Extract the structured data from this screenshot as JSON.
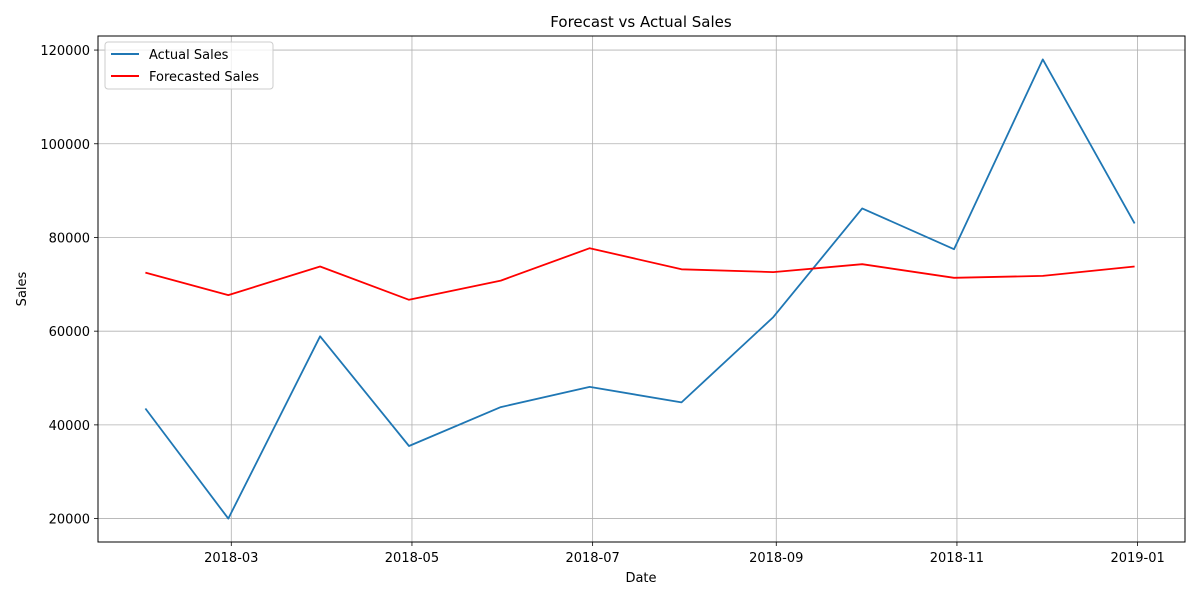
{
  "chart_data": {
    "type": "line",
    "title": "Forecast vs Actual Sales",
    "xlabel": "Date",
    "ylabel": "Sales",
    "x": [
      "2018-01-31",
      "2018-02-28",
      "2018-03-31",
      "2018-04-30",
      "2018-05-31",
      "2018-06-30",
      "2018-07-31",
      "2018-08-31",
      "2018-09-30",
      "2018-10-31",
      "2018-11-30",
      "2018-12-31"
    ],
    "x_ticks": [
      "2018-03",
      "2018-05",
      "2018-07",
      "2018-09",
      "2018-11",
      "2019-01"
    ],
    "xlim": [
      "2018-01-15",
      "2019-01-17"
    ],
    "y_ticks": [
      20000,
      40000,
      60000,
      80000,
      100000,
      120000
    ],
    "ylim": [
      15000,
      123000
    ],
    "grid": true,
    "legend_position": "top-left",
    "series": [
      {
        "name": "Actual Sales",
        "color": "#1f77b4",
        "values": [
          43500,
          20000,
          58900,
          35500,
          43800,
          48100,
          44800,
          63000,
          86200,
          77500,
          118000,
          83000
        ]
      },
      {
        "name": "Forecasted Sales",
        "color": "#ff0000",
        "values": [
          72500,
          67700,
          73800,
          66700,
          70800,
          77700,
          73200,
          72600,
          74300,
          71400,
          71800,
          73800
        ]
      }
    ]
  }
}
